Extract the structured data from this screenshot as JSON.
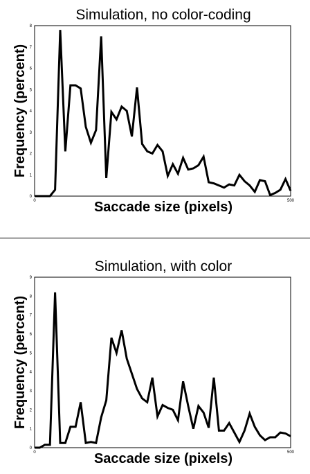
{
  "chart_data": [
    {
      "type": "line",
      "title": "Simulation, no color-coding",
      "xlabel": "Saccade size (pixels)",
      "ylabel": "Frequency (percent)",
      "xlim": [
        0,
        500
      ],
      "ylim": [
        0,
        8
      ],
      "xticks": [
        "0",
        "500"
      ],
      "yticks": [
        "0",
        "1",
        "2",
        "3",
        "4",
        "5",
        "6",
        "7",
        "8"
      ],
      "grid": false,
      "series": [
        {
          "name": "no color-coding",
          "x": [
            0,
            10,
            20,
            30,
            40,
            50,
            60,
            70,
            80,
            90,
            100,
            110,
            120,
            130,
            140,
            150,
            160,
            170,
            180,
            190,
            200,
            210,
            220,
            230,
            240,
            250,
            260,
            270,
            280,
            290,
            300,
            310,
            320,
            330,
            340,
            350,
            360,
            370,
            380,
            390,
            400,
            410,
            420,
            430,
            440,
            450,
            460,
            470,
            480,
            490,
            500
          ],
          "y": [
            0,
            0,
            0,
            0,
            0.3,
            7.8,
            2.1,
            5.2,
            5.2,
            5.05,
            3.25,
            2.5,
            3.1,
            7.5,
            0.85,
            3.95,
            3.6,
            4.2,
            4.0,
            2.8,
            5.1,
            2.45,
            2.1,
            2.0,
            2.4,
            2.1,
            0.95,
            1.5,
            1.05,
            1.8,
            1.25,
            1.3,
            1.45,
            1.85,
            0.65,
            0.6,
            0.5,
            0.4,
            0.55,
            0.5,
            1.0,
            0.7,
            0.5,
            0.2,
            0.75,
            0.7,
            0.05,
            0.15,
            0.3,
            0.8,
            0.25
          ]
        }
      ]
    },
    {
      "type": "line",
      "title": "Simulation, with color",
      "xlabel": "Saccade size (pixels)",
      "ylabel": "Frequency (percent)",
      "xlim": [
        0,
        500
      ],
      "ylim": [
        0,
        9
      ],
      "xticks": [
        "0",
        "500"
      ],
      "yticks": [
        "0",
        "1",
        "2",
        "3",
        "4",
        "5",
        "6",
        "7",
        "8",
        "9"
      ],
      "grid": false,
      "series": [
        {
          "name": "with color",
          "x": [
            0,
            10,
            20,
            30,
            40,
            50,
            60,
            70,
            80,
            90,
            100,
            110,
            120,
            130,
            140,
            150,
            160,
            170,
            180,
            190,
            200,
            210,
            220,
            230,
            240,
            250,
            260,
            270,
            280,
            290,
            300,
            310,
            320,
            330,
            340,
            350,
            360,
            370,
            380,
            390,
            400,
            410,
            420,
            430,
            440,
            450,
            460,
            470,
            480,
            490,
            500
          ],
          "y": [
            0,
            0,
            0.15,
            0.15,
            8.2,
            0.25,
            0.25,
            1.1,
            1.1,
            2.4,
            0.25,
            0.3,
            0.25,
            1.6,
            2.5,
            5.8,
            5.0,
            6.2,
            4.7,
            3.9,
            3.1,
            2.6,
            2.4,
            3.7,
            1.65,
            2.25,
            2.1,
            2.0,
            1.45,
            3.5,
            2.2,
            1.0,
            2.2,
            1.85,
            1.05,
            3.7,
            0.9,
            0.9,
            1.3,
            0.8,
            0.3,
            0.9,
            1.8,
            1.1,
            0.65,
            0.4,
            0.55,
            0.55,
            0.8,
            0.75,
            0.6
          ]
        }
      ]
    }
  ]
}
